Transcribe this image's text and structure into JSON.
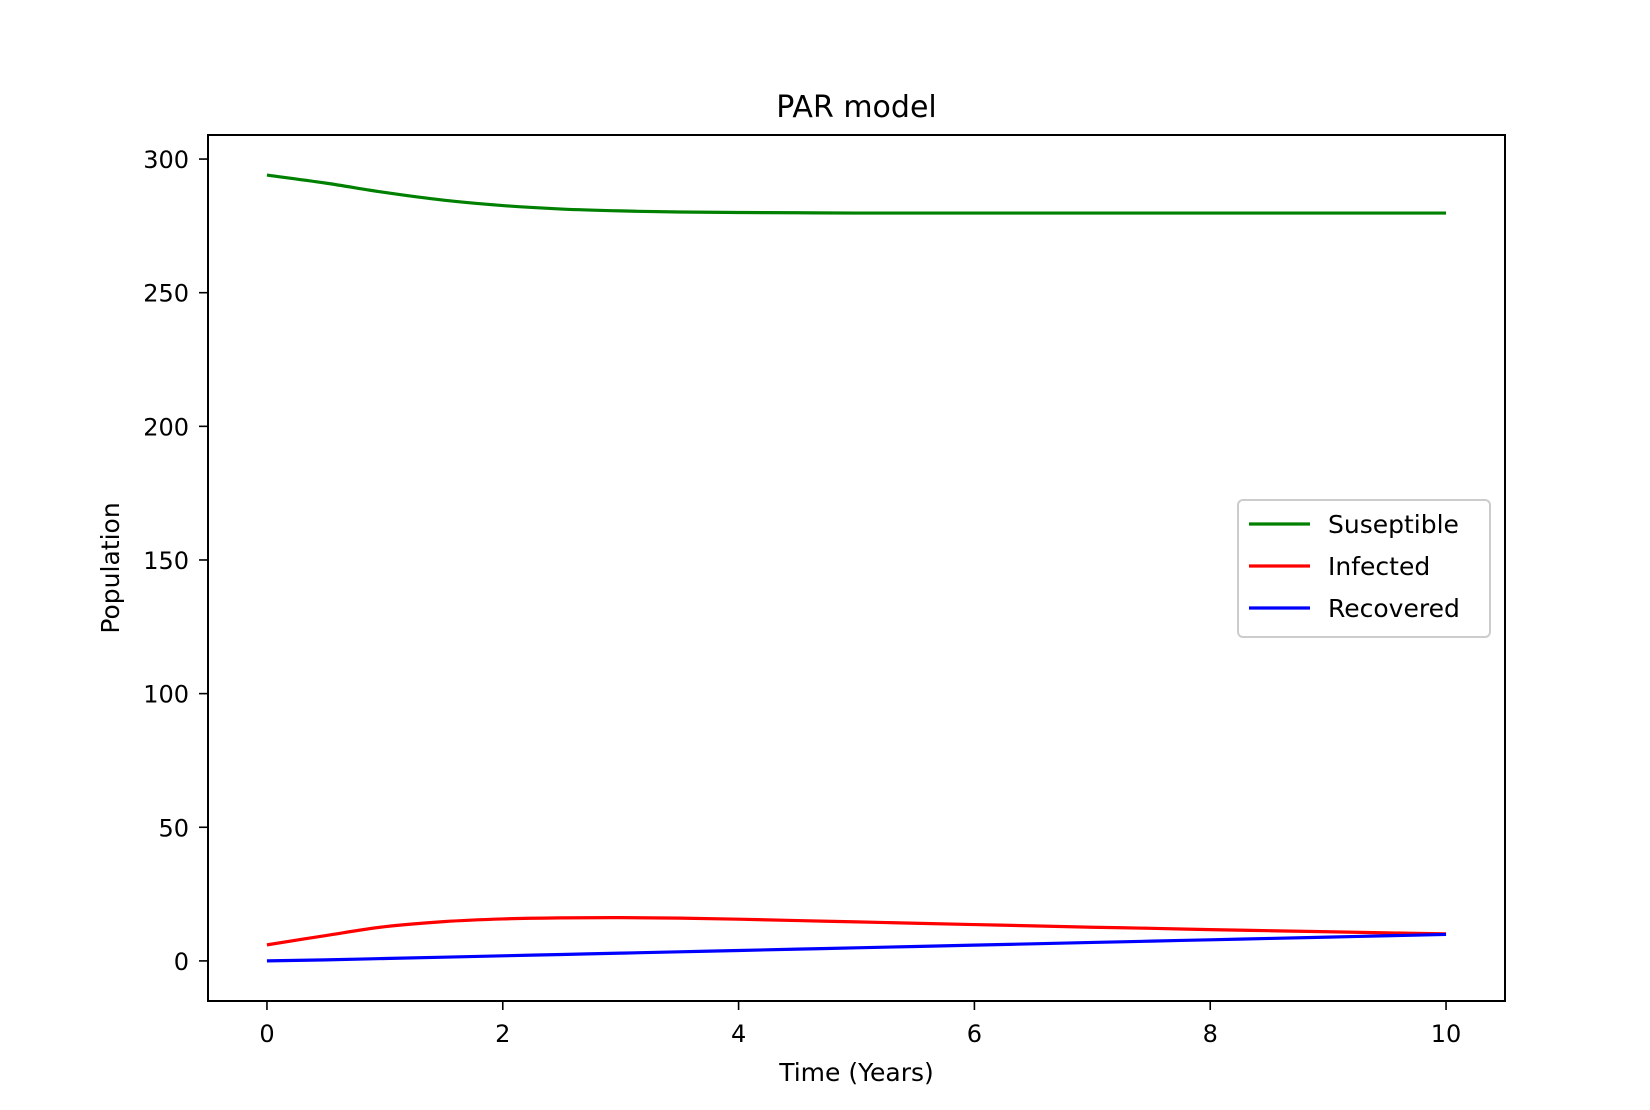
{
  "chart_data": {
    "type": "line",
    "title": "PAR model",
    "xlabel": "Time (Years)",
    "ylabel": "Population",
    "xlim": [
      -0.5,
      10.5
    ],
    "ylim": [
      -15,
      309
    ],
    "xticks": [
      0,
      2,
      4,
      6,
      8,
      10
    ],
    "yticks": [
      0,
      50,
      100,
      150,
      200,
      250,
      300
    ],
    "grid": false,
    "legend_position": "center-right",
    "x": [
      0,
      0.5,
      1,
      1.5,
      2,
      2.5,
      3,
      3.5,
      4,
      4.5,
      5,
      5.5,
      6,
      6.5,
      7,
      7.5,
      8,
      8.5,
      9,
      9.5,
      10
    ],
    "series": [
      {
        "name": "Suseptible",
        "color": "#008000",
        "values": [
          294,
          291,
          287.5,
          284.6,
          282.6,
          281.3,
          280.6,
          280.2,
          280.0,
          279.9,
          279.8,
          279.8,
          279.8,
          279.8,
          279.8,
          279.8,
          279.8,
          279.8,
          279.8,
          279.8,
          279.8
        ]
      },
      {
        "name": "Infected",
        "color": "#ff0000",
        "values": [
          6,
          9.5,
          12.8,
          14.7,
          15.7,
          16.1,
          16.2,
          16.0,
          15.6,
          15.1,
          14.6,
          14.1,
          13.6,
          13.1,
          12.6,
          12.2,
          11.7,
          11.3,
          10.9,
          10.5,
          10.1
        ]
      },
      {
        "name": "Recovered",
        "color": "#0000ff",
        "values": [
          0,
          0.4,
          0.9,
          1.4,
          1.9,
          2.4,
          2.9,
          3.4,
          3.9,
          4.4,
          4.9,
          5.4,
          5.9,
          6.4,
          6.9,
          7.4,
          7.9,
          8.4,
          8.9,
          9.4,
          9.9
        ]
      }
    ]
  }
}
